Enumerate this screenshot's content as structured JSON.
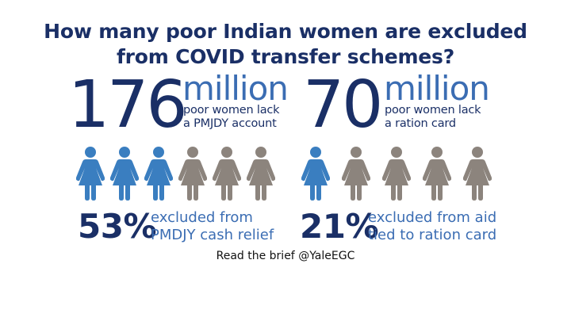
{
  "title": {
    "line1": "How many poor Indian women are excluded",
    "line2": "from COVID transfer schemes?"
  },
  "colors": {
    "navy": "#1a2f66",
    "accent_blue": "#3b6db3",
    "figure_included": "#8c847d",
    "figure_excluded": "#3a7ec0"
  },
  "left": {
    "number": "176",
    "unit": "million",
    "desc_line1": "poor women lack",
    "desc_line2": "a PMJDY account",
    "figures": {
      "total": 6,
      "highlighted": 3,
      "icon": "woman-figure-icon"
    },
    "pct": "53%",
    "pct_line1": "excluded from",
    "pct_line2": "PMDJY cash relief"
  },
  "right": {
    "number": "70",
    "unit": "million",
    "desc_line1": "poor women lack",
    "desc_line2": "a ration card",
    "figures": {
      "total": 5,
      "highlighted": 1,
      "icon": "woman-figure-icon"
    },
    "pct": "21%",
    "pct_line1": "excluded from aid",
    "pct_line2": "tied to ration card"
  },
  "footer": "Read the brief @YaleEGC"
}
